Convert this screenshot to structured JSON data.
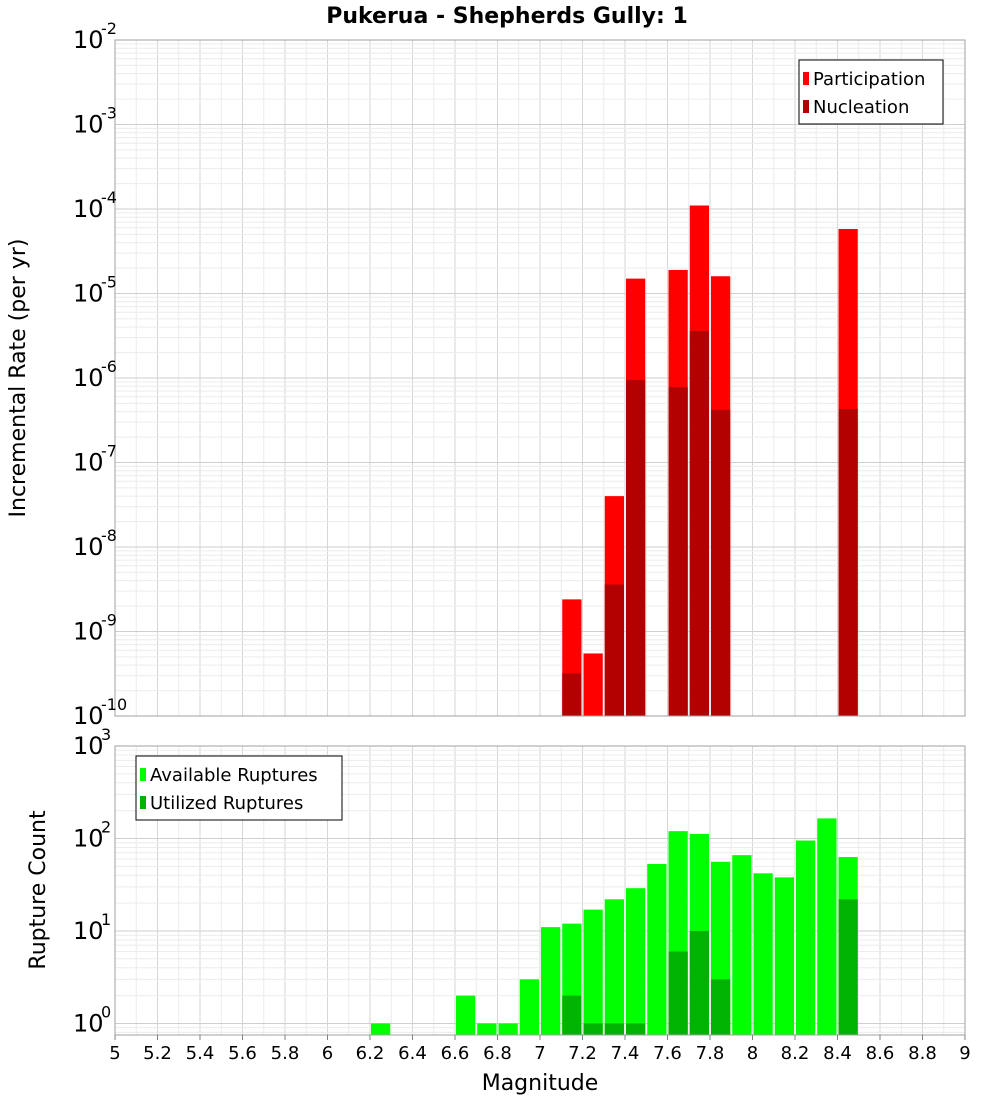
{
  "chart_data": [
    {
      "type": "bar",
      "title": "Pukerua - Shepherds Gully: 1",
      "xlabel": "",
      "ylabel": "Incremental Rate (per yr)",
      "yscale": "log",
      "ylim": [
        1e-10,
        0.01
      ],
      "xlim": [
        5,
        9
      ],
      "bin_width": 0.1,
      "grid": true,
      "legend_position": "top-right",
      "series": [
        {
          "name": "Participation",
          "color": "#ff0000",
          "x": [
            7.15,
            7.25,
            7.35,
            7.45,
            7.65,
            7.75,
            7.85,
            8.45
          ],
          "values": [
            2.4e-09,
            5.5e-10,
            4e-08,
            1.5e-05,
            1.9e-05,
            0.00011,
            1.6e-05,
            5.8e-05
          ]
        },
        {
          "name": "Nucleation",
          "color": "#b30000",
          "x": [
            7.15,
            7.35,
            7.45,
            7.65,
            7.75,
            7.85,
            8.45
          ],
          "values": [
            3.2e-10,
            3.6e-09,
            9.5e-07,
            7.8e-07,
            3.6e-06,
            4.2e-07,
            4.3e-07
          ]
        }
      ]
    },
    {
      "type": "bar",
      "title": "",
      "xlabel": "Magnitude",
      "ylabel": "Rupture Count",
      "yscale": "log",
      "ylim": [
        0.75,
        1000
      ],
      "xlim": [
        5,
        9
      ],
      "bin_width": 0.1,
      "grid": true,
      "legend_position": "top-left",
      "x_ticks": [
        "5",
        "5.2",
        "5.4",
        "5.6",
        "5.8",
        "6",
        "6.2",
        "6.4",
        "6.6",
        "6.8",
        "7",
        "7.2",
        "7.4",
        "7.6",
        "7.8",
        "8",
        "8.2",
        "8.4",
        "8.6",
        "8.8",
        "9"
      ],
      "series": [
        {
          "name": "Available Ruptures",
          "color": "#00ff00",
          "x": [
            6.25,
            6.65,
            6.75,
            6.85,
            6.95,
            7.05,
            7.15,
            7.25,
            7.35,
            7.45,
            7.55,
            7.65,
            7.75,
            7.85,
            7.95,
            8.05,
            8.15,
            8.25,
            8.35,
            8.45
          ],
          "values": [
            1,
            2,
            1,
            1,
            3,
            11,
            12,
            17,
            22,
            29,
            53,
            120,
            112,
            56,
            66,
            42,
            38,
            95,
            165,
            63
          ]
        },
        {
          "name": "Utilized Ruptures",
          "color": "#00b300",
          "x": [
            7.15,
            7.25,
            7.35,
            7.45,
            7.65,
            7.75,
            7.85,
            8.45
          ],
          "values": [
            2,
            1,
            1,
            1,
            6,
            10,
            3,
            22
          ]
        }
      ]
    }
  ]
}
